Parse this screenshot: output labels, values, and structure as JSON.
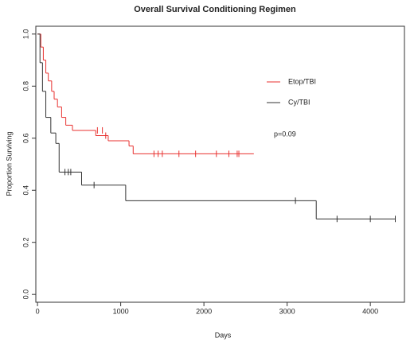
{
  "chart_data": {
    "type": "step",
    "title": "Overall Survival Conditioning Regimen",
    "x_label": "Days",
    "y_label": "Proportion Surviving",
    "annotation": "p=0.09",
    "xlim": [
      -20,
      4410
    ],
    "ylim": [
      -0.03,
      1.03
    ],
    "xticks": [
      0,
      1000,
      2000,
      3000,
      4000
    ],
    "yticks": [
      {
        "value": 0,
        "label": "0.0"
      },
      0.2,
      0.4,
      0.6,
      0.8,
      {
        "value": 1,
        "label": "1.0"
      }
    ],
    "series": [
      {
        "name": "Etop/TBI",
        "color": "#e8312f",
        "x": [
          0,
          40,
          70,
          100,
          130,
          170,
          200,
          240,
          290,
          340,
          420,
          700,
          850,
          1100,
          1150,
          2600
        ],
        "values": [
          1.0,
          0.95,
          0.9,
          0.85,
          0.82,
          0.78,
          0.75,
          0.72,
          0.68,
          0.65,
          0.63,
          0.61,
          0.59,
          0.57,
          0.54,
          0.54
        ],
        "censored": {
          "x": [
            720,
            780,
            820,
            1400,
            1450,
            1500,
            1700,
            1900,
            2150,
            2300,
            2400,
            2420
          ],
          "values": [
            0.63,
            0.63,
            0.61,
            0.54,
            0.54,
            0.54,
            0.54,
            0.54,
            0.54,
            0.54,
            0.54,
            0.54
          ]
        }
      },
      {
        "name": "Cy/TBI",
        "color": "#333333",
        "x": [
          0,
          30,
          60,
          100,
          160,
          220,
          260,
          530,
          1060,
          3350,
          4300
        ],
        "values": [
          1.0,
          0.89,
          0.78,
          0.68,
          0.62,
          0.58,
          0.47,
          0.42,
          0.36,
          0.29,
          0.29
        ],
        "censored": {
          "x": [
            330,
            370,
            400,
            680,
            3100,
            3600,
            4000,
            4300
          ],
          "values": [
            0.47,
            0.47,
            0.47,
            0.42,
            0.36,
            0.29,
            0.29,
            0.29
          ]
        }
      }
    ]
  }
}
